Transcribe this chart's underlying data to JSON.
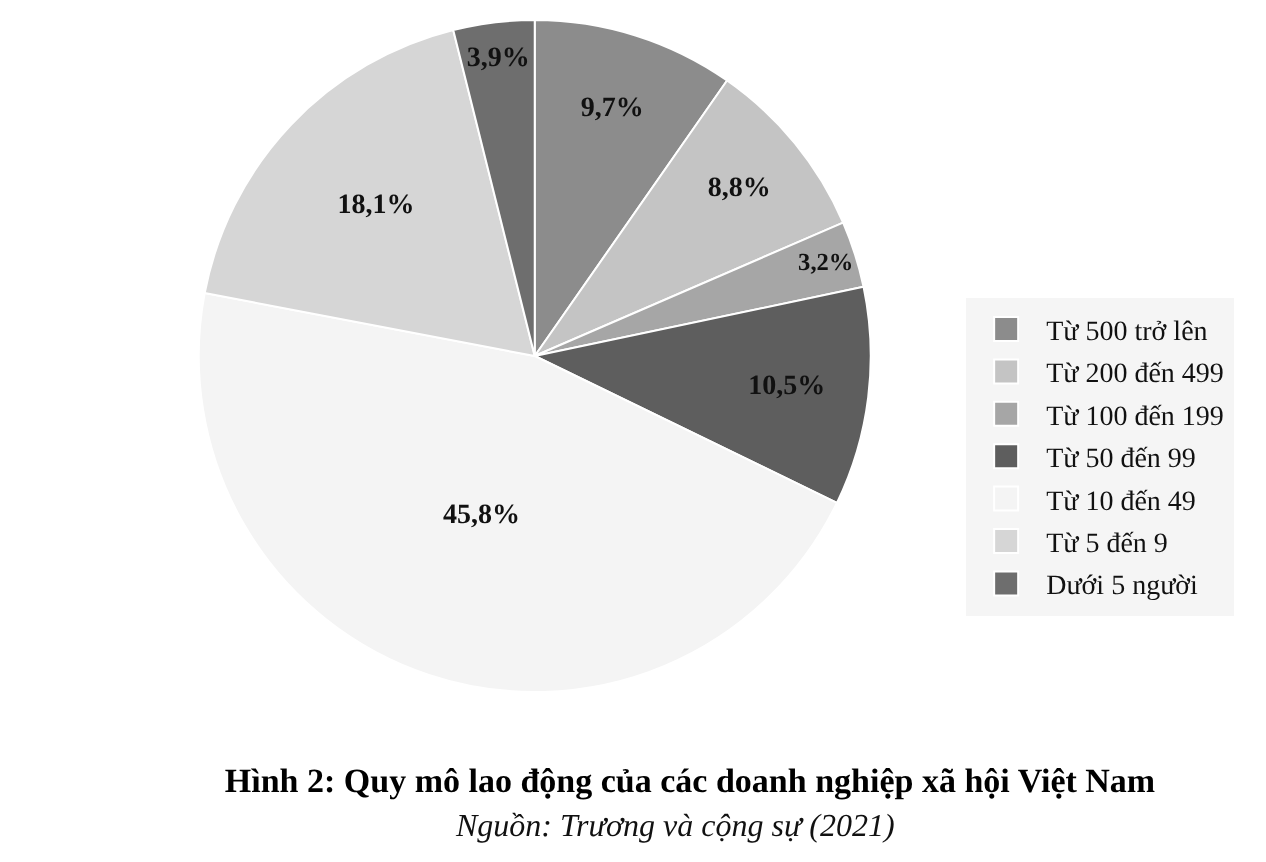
{
  "chart_data": {
    "type": "pie",
    "title": "Hình 2: Quy mô lao động của các doanh nghiệp xã hội Việt Nam",
    "annotations": [
      "Nguồn: Trương và cộng sự (2021)"
    ],
    "categories": [
      "Từ 500 trở lên",
      "Từ 200 đến 499",
      "Từ 100 đến 199",
      "Từ 50 đến 99",
      "Từ 10 đến 49",
      "Từ 5 đến 9",
      "Dưới 5 người"
    ],
    "values": [
      9.7,
      8.8,
      3.2,
      10.5,
      45.8,
      18.1,
      3.9
    ],
    "colors": [
      "#8c8c8c",
      "#c4c4c4",
      "#a6a6a6",
      "#5e5e5e",
      "#f4f4f4",
      "#d6d6d6",
      "#6e6e6e"
    ],
    "value_labels": [
      "9,7%",
      "8,8%",
      "3,2%",
      "10,5%",
      "45,8%",
      "18,1%",
      "3,9%"
    ],
    "legend": "right"
  }
}
